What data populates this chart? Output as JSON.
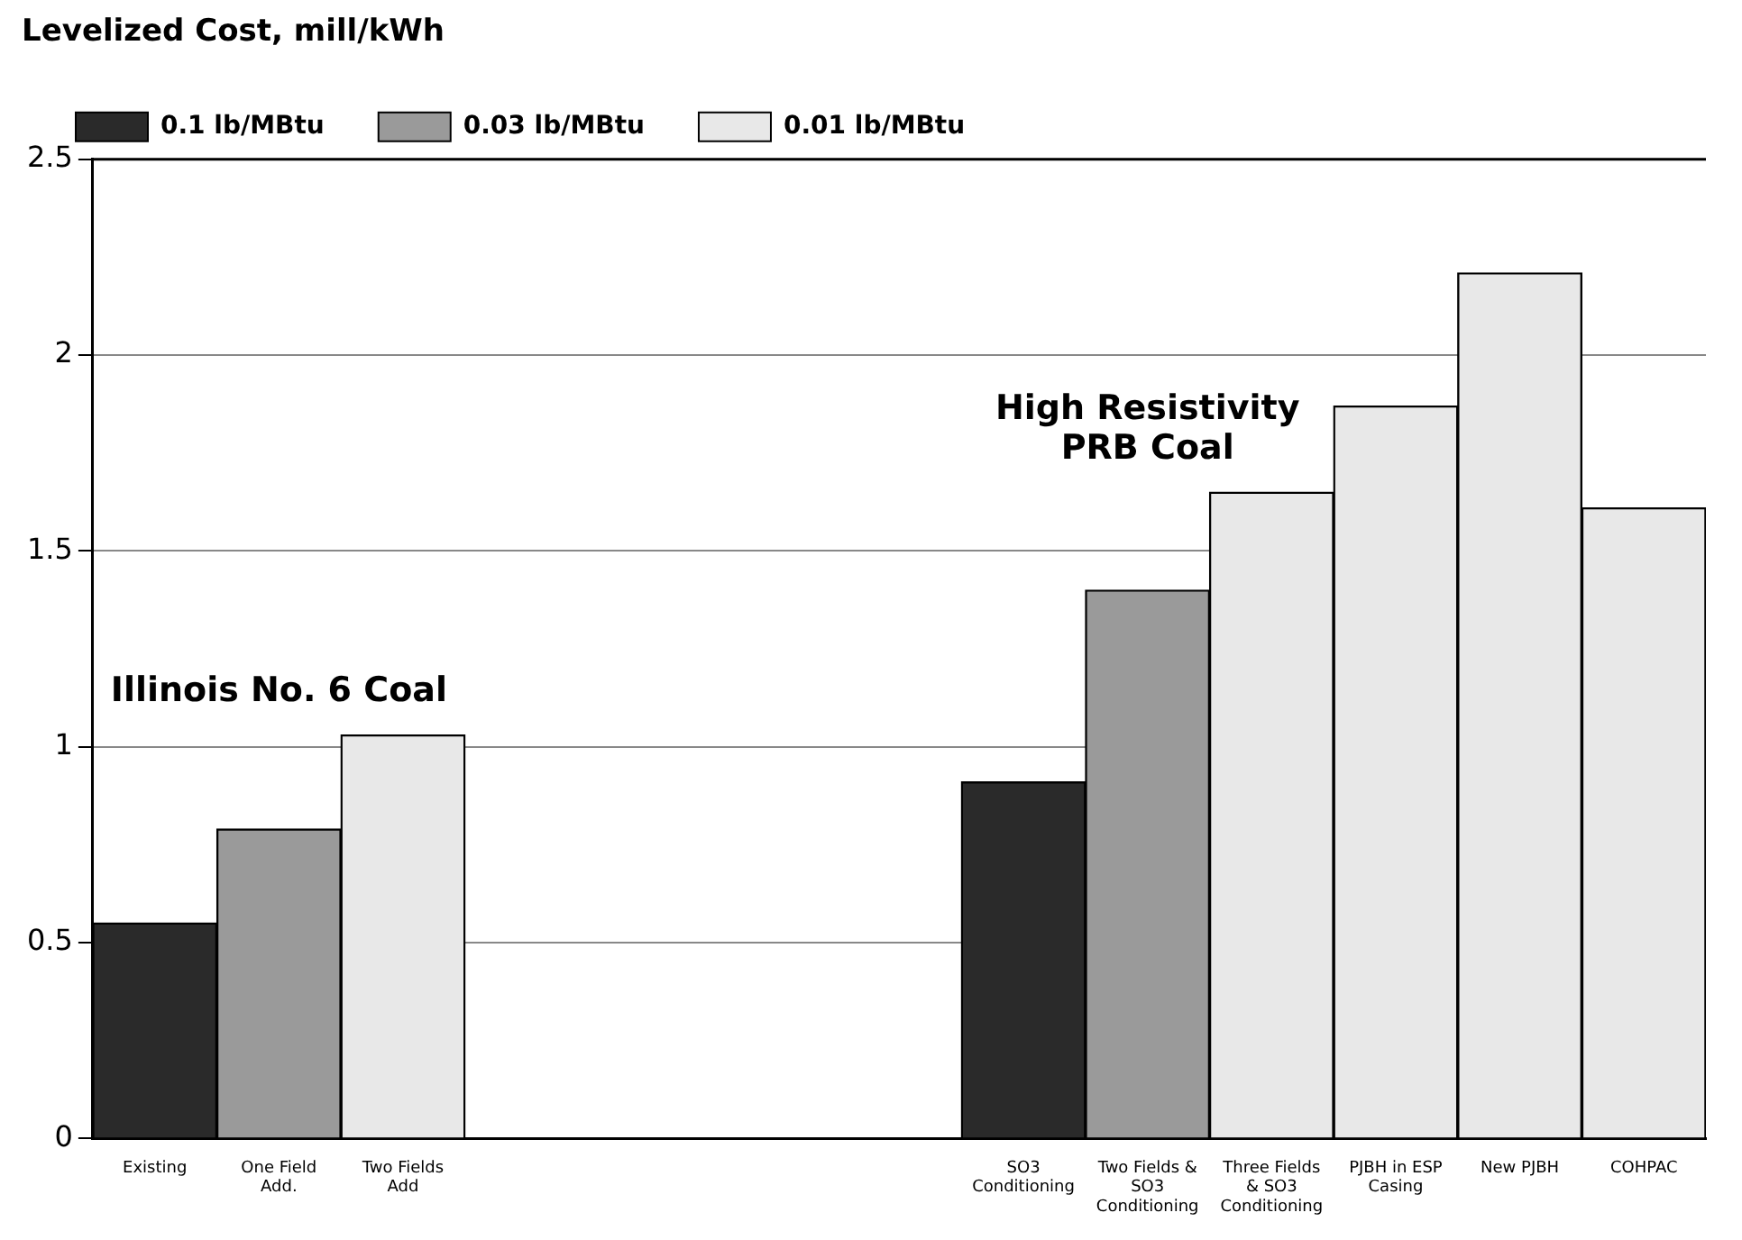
{
  "chart_data": {
    "type": "bar",
    "ylabel": "Levelized Cost, mill/kWh",
    "categories": [
      "Existing",
      "One Field Add.",
      "Two Fields Add",
      null,
      null,
      null,
      null,
      "SO3 Conditioning",
      "Two Fields &\nSO3 Conditioning",
      "Three Fields &\nSO3 Conditioning",
      "PJBH in ESP\nCasing",
      "New PJBH",
      "COHPAC"
    ],
    "series": [
      {
        "name": "0.1 lb/MBtu",
        "color": "#2a2a2a",
        "values": [
          0.55,
          null,
          null,
          null,
          null,
          null,
          null,
          0.91,
          null,
          null,
          null,
          null,
          null
        ]
      },
      {
        "name": "0.03 lb/MBtu",
        "color": "#9a9a9a",
        "values": [
          null,
          0.79,
          null,
          null,
          null,
          null,
          null,
          null,
          1.4,
          null,
          null,
          null,
          null
        ]
      },
      {
        "name": "0.01 lb/MBtu",
        "color": "#e8e8e8",
        "values": [
          null,
          null,
          1.03,
          null,
          null,
          null,
          null,
          null,
          null,
          1.65,
          1.87,
          2.21,
          1.61
        ]
      }
    ],
    "ylim": [
      0,
      2.5
    ],
    "yticks": [
      0,
      0.5,
      1,
      1.5,
      2,
      2.5
    ],
    "grid": "y",
    "legend": "top left",
    "annotations": [
      "Illinois No. 6 Coal",
      "High Resistivity\nPRB Coal"
    ]
  }
}
